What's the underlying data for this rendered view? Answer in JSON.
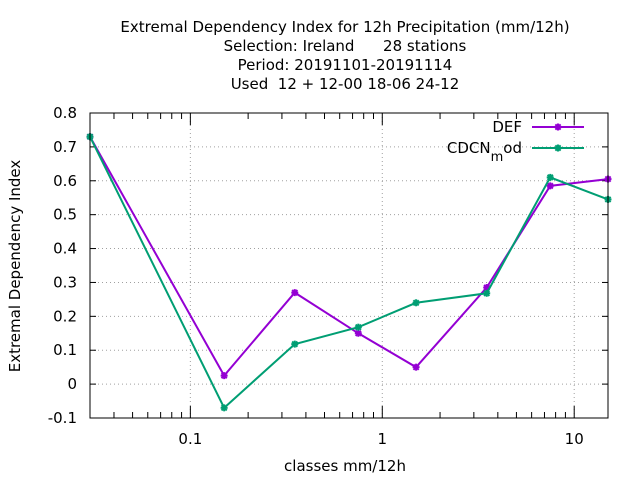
{
  "chart_data": {
    "type": "line",
    "title_lines": [
      "Extremal Dependency Index  for 12h Precipitation (mm/12h)",
      "Selection: Ireland      28 stations",
      "Period: 20191101-20191114",
      "Used  12 + 12-00 18-06 24-12"
    ],
    "xlabel": "classes mm/12h",
    "ylabel": "Extremal Dependency Index",
    "x_scale": "log",
    "xlim": [
      0.03,
      15
    ],
    "ylim": [
      -0.1,
      0.8
    ],
    "x_ticks": [
      {
        "value": 0.1,
        "label": "0.1"
      },
      {
        "value": 1,
        "label": "1"
      },
      {
        "value": 10,
        "label": "10"
      }
    ],
    "y_ticks": [
      {
        "value": -0.1,
        "label": "-0.1"
      },
      {
        "value": 0,
        "label": "0"
      },
      {
        "value": 0.1,
        "label": "0.1"
      },
      {
        "value": 0.2,
        "label": "0.2"
      },
      {
        "value": 0.3,
        "label": "0.3"
      },
      {
        "value": 0.4,
        "label": "0.4"
      },
      {
        "value": 0.5,
        "label": "0.5"
      },
      {
        "value": 0.6,
        "label": "0.6"
      },
      {
        "value": 0.7,
        "label": "0.7"
      },
      {
        "value": 0.8,
        "label": "0.8"
      }
    ],
    "grid": true,
    "legend_position": "top-right",
    "x": [
      0.03,
      0.15,
      0.35,
      0.75,
      1.5,
      3.5,
      7.5,
      15
    ],
    "series": [
      {
        "name": "DEF",
        "color": "#9400d3",
        "values": [
          0.73,
          0.025,
          0.27,
          0.15,
          0.05,
          0.285,
          0.585,
          0.605
        ]
      },
      {
        "name": "CDCN_mod",
        "legend_main": "CDCN",
        "legend_sub": "m",
        "legend_tail": "od",
        "color": "#009e73",
        "values": [
          0.73,
          -0.07,
          0.118,
          0.168,
          0.24,
          0.268,
          0.61,
          0.545
        ]
      }
    ]
  }
}
